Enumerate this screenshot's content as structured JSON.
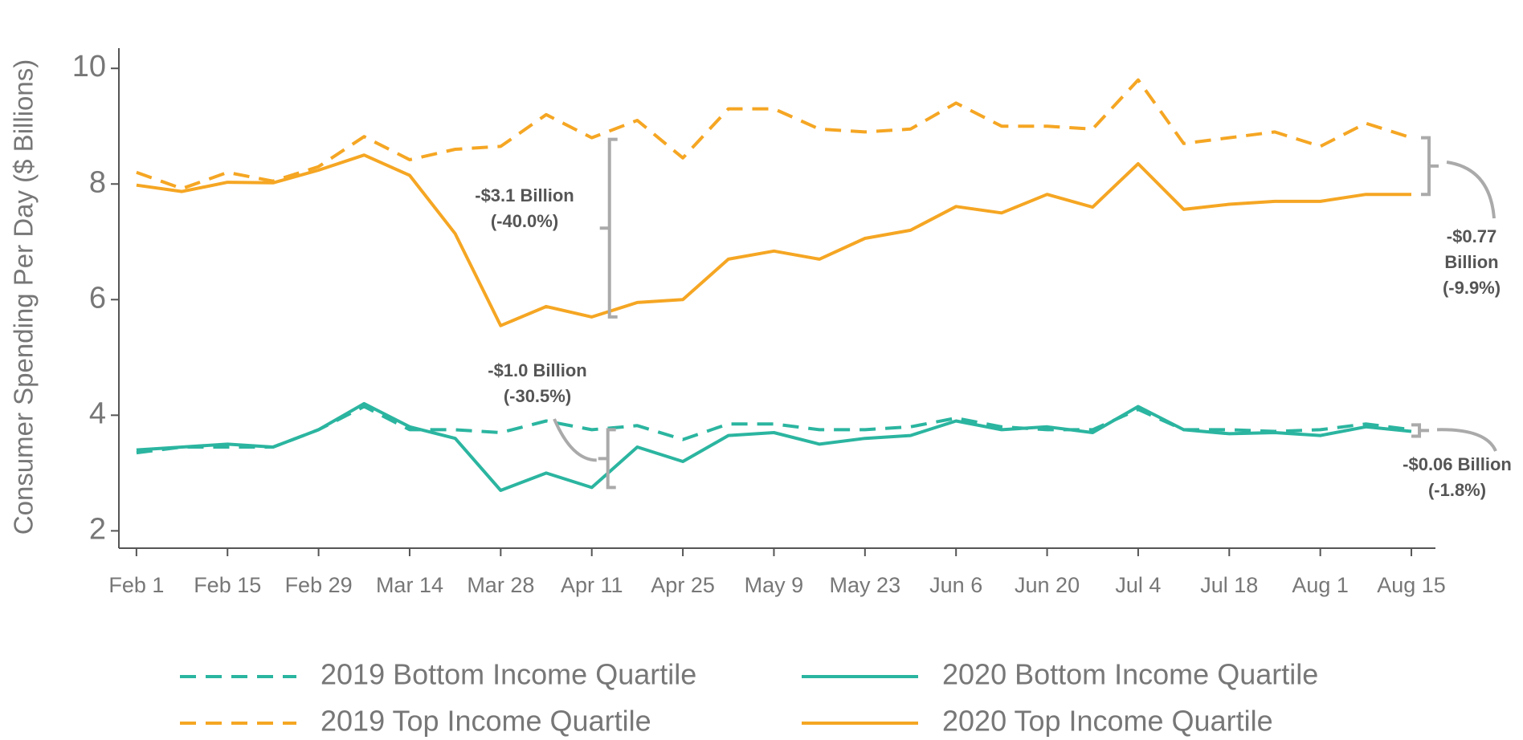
{
  "chart_data": {
    "type": "line",
    "y_label": "Consumer Spending Per Day ($ Billions)",
    "x": [
      0,
      7,
      14,
      21,
      28,
      35,
      42,
      49,
      56,
      63,
      70,
      77,
      84,
      91,
      98,
      105,
      112,
      119,
      126,
      133,
      140,
      147,
      154,
      161,
      168,
      175,
      182,
      189,
      196
    ],
    "xlim": [
      -2.7,
      199.7
    ],
    "xticks": [
      {
        "value": 0,
        "label": "Feb 1"
      },
      {
        "value": 14,
        "label": "Feb 15"
      },
      {
        "value": 28,
        "label": "Feb 29"
      },
      {
        "value": 42,
        "label": "Mar 14"
      },
      {
        "value": 56,
        "label": "Mar 28"
      },
      {
        "value": 70,
        "label": "Apr 11"
      },
      {
        "value": 84,
        "label": "Apr 25"
      },
      {
        "value": 98,
        "label": "May 9"
      },
      {
        "value": 112,
        "label": "May 23"
      },
      {
        "value": 126,
        "label": "Jun 6"
      },
      {
        "value": 140,
        "label": "Jun 20"
      },
      {
        "value": 154,
        "label": "Jul 4"
      },
      {
        "value": 168,
        "label": "Jul 18"
      },
      {
        "value": 182,
        "label": "Aug 1"
      },
      {
        "value": 196,
        "label": "Aug 15"
      }
    ],
    "ylim": [
      1.7,
      10.35
    ],
    "yticks": [
      2,
      4,
      6,
      8,
      10
    ],
    "grid": false,
    "series": [
      {
        "name": "2019 Bottom Income Quartile",
        "color": "#2bb5a0",
        "dashed": true,
        "values": [
          3.35,
          3.45,
          3.45,
          3.45,
          3.75,
          4.15,
          3.75,
          3.75,
          3.7,
          3.9,
          3.75,
          3.82,
          3.58,
          3.85,
          3.85,
          3.75,
          3.75,
          3.8,
          3.95,
          3.8,
          3.75,
          3.75,
          4.1,
          3.75,
          3.75,
          3.72,
          3.75,
          3.85,
          3.75
        ]
      },
      {
        "name": "2020 Bottom Income Quartile",
        "color": "#2bb5a0",
        "dashed": false,
        "values": [
          3.4,
          3.45,
          3.5,
          3.45,
          3.75,
          4.2,
          3.8,
          3.6,
          2.7,
          3.0,
          2.75,
          3.45,
          3.2,
          3.65,
          3.7,
          3.5,
          3.6,
          3.65,
          3.9,
          3.75,
          3.8,
          3.7,
          4.15,
          3.75,
          3.68,
          3.7,
          3.65,
          3.8,
          3.72
        ]
      },
      {
        "name": "2019 Top Income Quartile",
        "color": "#f5a623",
        "dashed": true,
        "values": [
          8.2,
          7.92,
          8.2,
          8.05,
          8.3,
          8.82,
          8.42,
          8.6,
          8.65,
          9.2,
          8.8,
          9.1,
          8.45,
          9.3,
          9.3,
          8.95,
          8.9,
          8.95,
          9.4,
          9.0,
          9.0,
          8.95,
          9.8,
          8.7,
          8.8,
          8.9,
          8.65,
          9.05,
          8.8
        ]
      },
      {
        "name": "2020 Top Income Quartile",
        "color": "#f5a623",
        "dashed": false,
        "values": [
          7.98,
          7.87,
          8.03,
          8.02,
          8.24,
          8.5,
          8.15,
          7.14,
          5.55,
          5.88,
          5.7,
          5.95,
          6.0,
          6.7,
          6.84,
          6.7,
          7.06,
          7.2,
          7.61,
          7.5,
          7.82,
          7.6,
          8.35,
          7.56,
          7.65,
          7.7,
          7.7,
          7.82,
          7.82
        ]
      }
    ],
    "annotations": [
      {
        "lines": [
          "-$3.1 Billion",
          "(-40.0%)"
        ]
      },
      {
        "lines": [
          "-$1.0 Billion",
          "(-30.5%)"
        ]
      },
      {
        "lines": [
          "-$0.77",
          "Billion",
          "(-9.9%)"
        ]
      },
      {
        "lines": [
          "-$0.06 Billion",
          "(-1.8%)"
        ]
      }
    ]
  }
}
